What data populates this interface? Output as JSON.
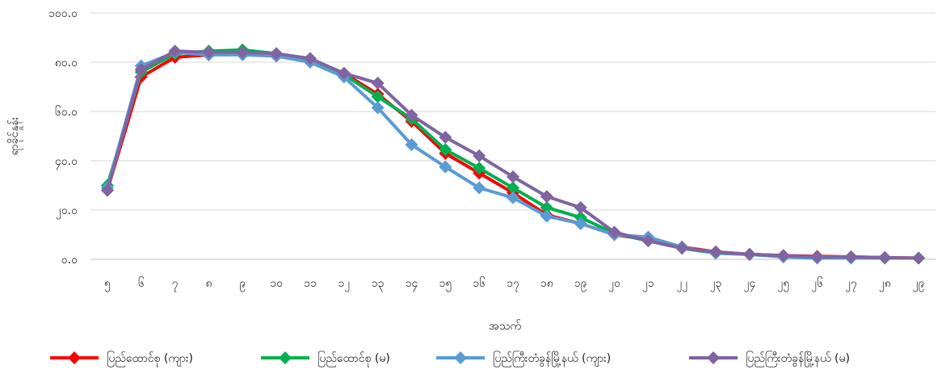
{
  "chart_data": {
    "type": "line",
    "ylabel": "ရာခိုင်နှုန်း",
    "xlabel": "အသက်",
    "ylim": [
      0,
      100
    ],
    "yticks": [
      "၀.၀",
      "၂၀.၀",
      "၄၀.၀",
      "၆၀.၀",
      "၈၀.၀",
      "၁၀၀.၀"
    ],
    "yticks_values": [
      0,
      20,
      40,
      60,
      80,
      100
    ],
    "grid": true,
    "legend_position": "bottom",
    "categories": [
      "၅",
      "၆",
      "၇",
      "၈",
      "၉",
      "၁၀",
      "၁၁",
      "၁၂",
      "၁၃",
      "၁၄",
      "၁၅",
      "၁၆",
      "၁၇",
      "၁၈",
      "၁၉",
      "၂၀",
      "၂၁",
      "၂၂",
      "၂၃",
      "၂၄",
      "၂၅",
      "၂၆",
      "၂၇",
      "၂၈",
      "၂၉"
    ],
    "series": [
      {
        "name": "ပြည်ထောင်စု (ကျား)",
        "color": "#ff0000",
        "values": [
          28.0,
          74.0,
          82.0,
          83.0,
          83.5,
          82.5,
          80.5,
          75.5,
          67.0,
          56.0,
          43.0,
          35.0,
          27.0,
          18.0,
          14.5,
          10.0,
          8.0,
          5.0,
          3.0,
          2.0,
          1.5,
          1.2,
          1.0,
          0.7,
          0.5
        ]
      },
      {
        "name": "ပြည်ထောင်စု (မ)",
        "color": "#00b050",
        "values": [
          30.0,
          76.0,
          83.5,
          84.5,
          85.0,
          83.5,
          81.0,
          75.0,
          66.0,
          57.0,
          44.5,
          37.0,
          29.0,
          21.0,
          17.0,
          10.5,
          7.5,
          4.5,
          2.5,
          2.0,
          1.0,
          1.0,
          1.0,
          0.5,
          0.5
        ]
      },
      {
        "name": "ပြည်ကြီးတံခွန်မြို့နယ် (ကျား)",
        "color": "#5b9bd5",
        "values": [
          29.0,
          78.5,
          84.0,
          83.0,
          83.0,
          82.5,
          80.0,
          74.0,
          61.5,
          46.5,
          37.5,
          29.0,
          25.0,
          17.5,
          14.5,
          10.0,
          9.0,
          5.0,
          2.5,
          2.0,
          1.0,
          0.5,
          0.5,
          0.5,
          0.5
        ]
      },
      {
        "name": "ပြည်ကြီးတံခွန်မြို့နယ် (မ)",
        "color": "#8064a2",
        "values": [
          28.0,
          77.0,
          84.5,
          84.0,
          84.0,
          83.5,
          81.5,
          75.5,
          71.5,
          58.5,
          49.5,
          42.0,
          33.5,
          25.5,
          21.0,
          11.0,
          7.5,
          4.5,
          3.0,
          2.0,
          1.5,
          1.0,
          1.0,
          0.7,
          0.5
        ]
      }
    ]
  }
}
